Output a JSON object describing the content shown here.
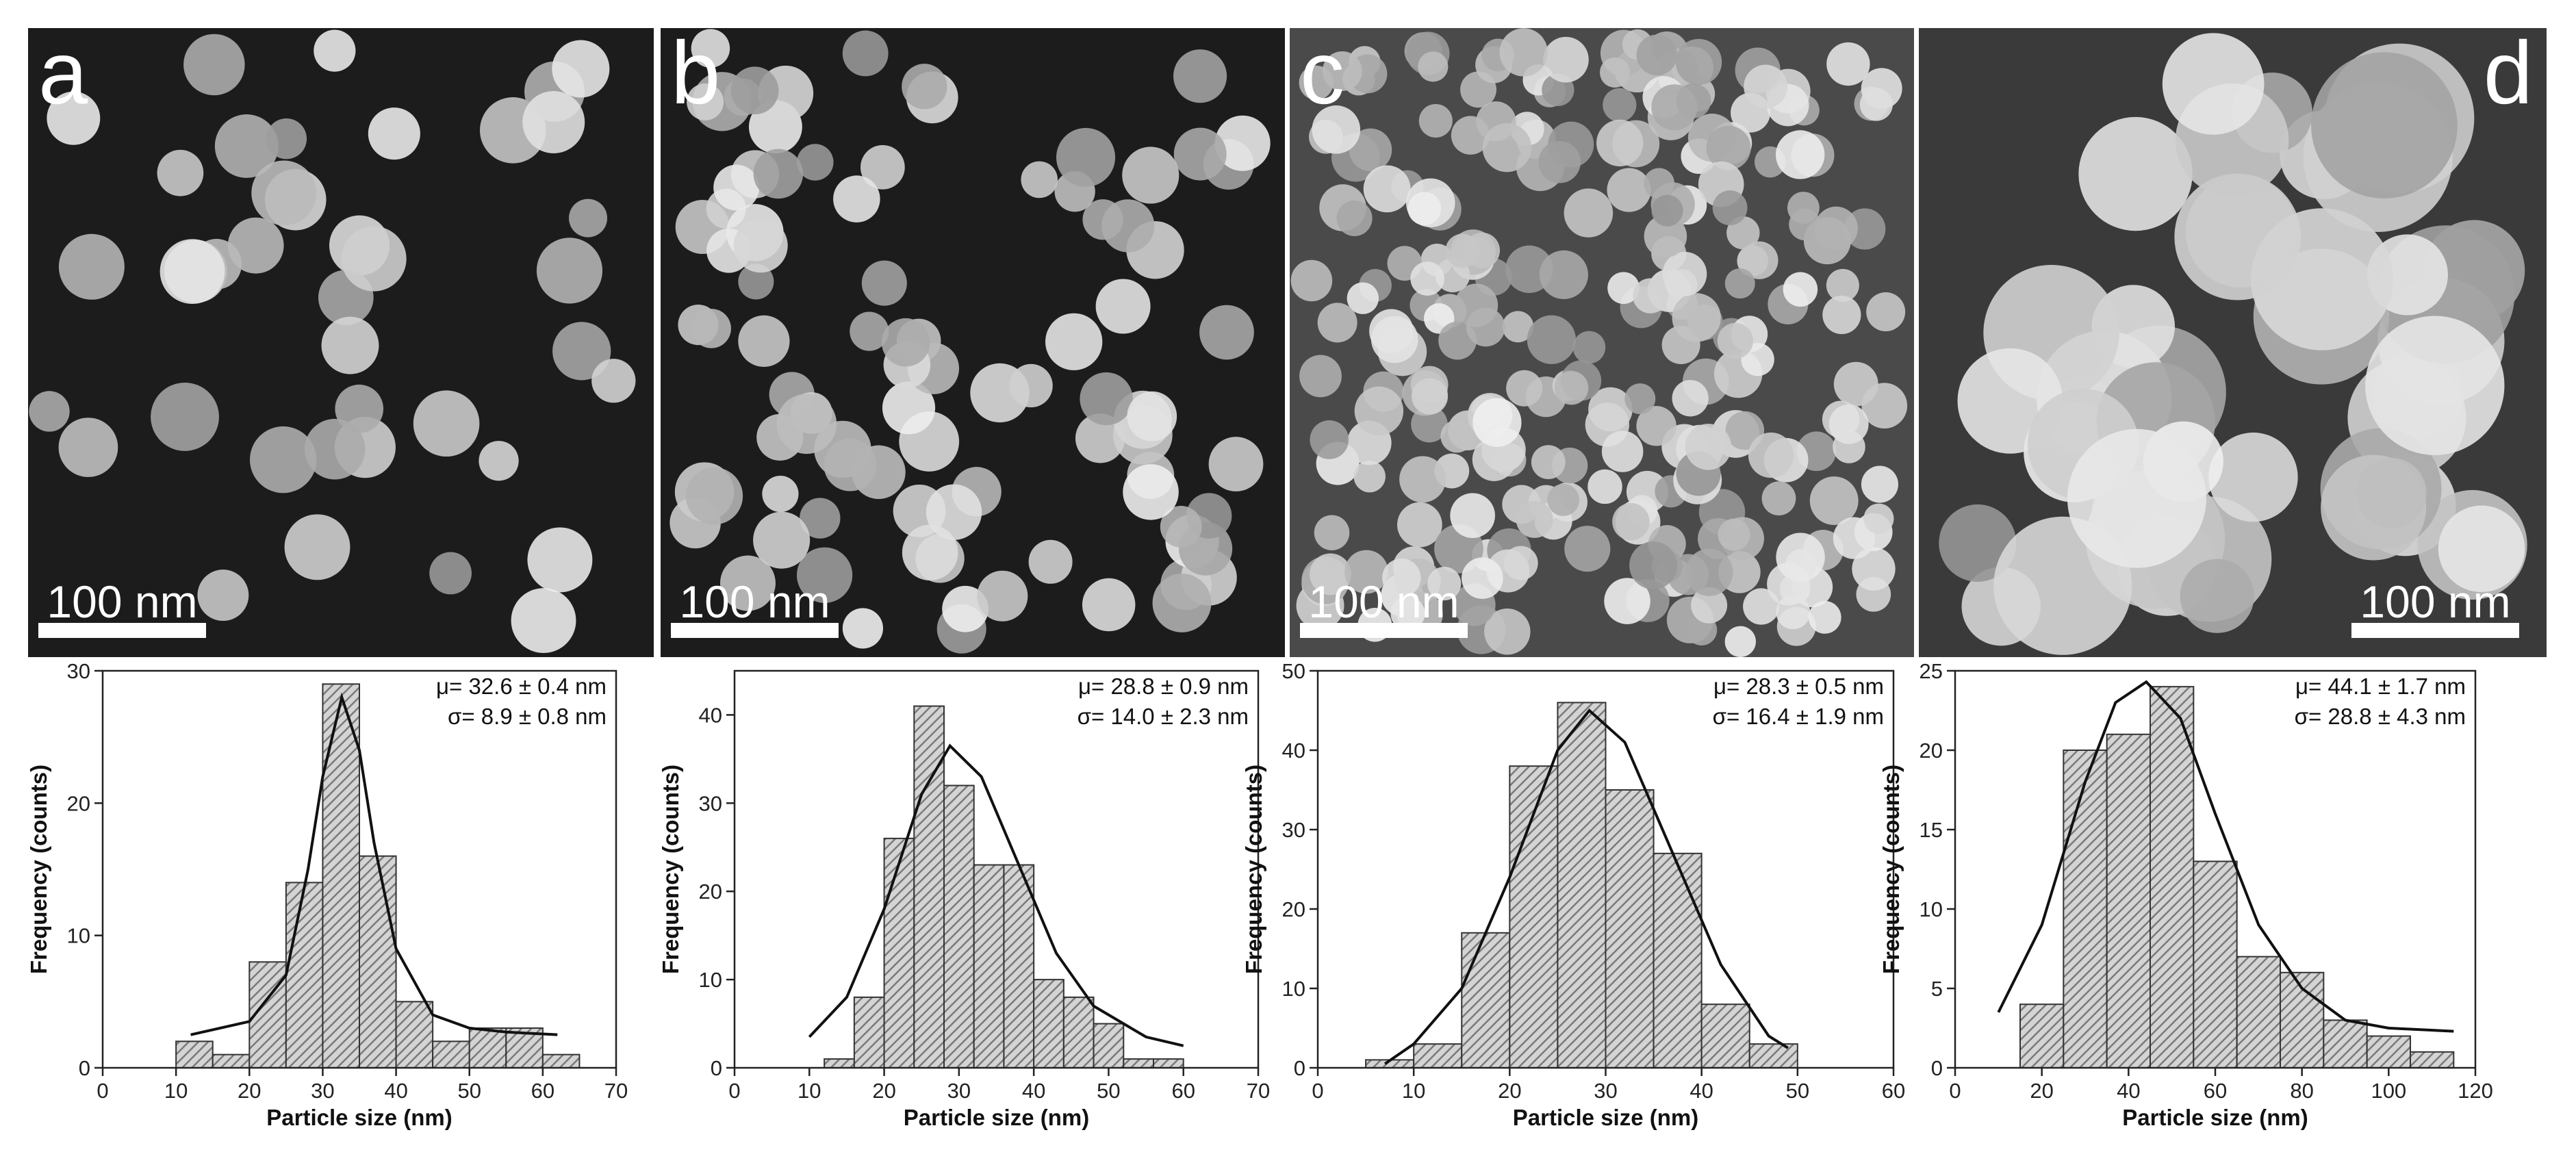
{
  "panels": [
    {
      "label": "a",
      "scale_bar": "100 nm"
    },
    {
      "label": "b",
      "scale_bar": "100 nm"
    },
    {
      "label": "c",
      "scale_bar": "100 nm"
    },
    {
      "label": "d",
      "scale_bar": "100 nm"
    }
  ],
  "chart_data": [
    {
      "type": "histogram",
      "xlabel": "Particle size (nm)",
      "ylabel": "Frequency (counts)",
      "annotations": [
        "μ= 32.6 ± 0.4 nm",
        "σ= 8.9 ± 0.8 nm"
      ],
      "bins": [
        10,
        15,
        20,
        25,
        30,
        35,
        40,
        45,
        50,
        55,
        60,
        65
      ],
      "values": [
        2,
        1,
        8,
        14,
        29,
        16,
        5,
        2,
        3,
        3,
        1
      ],
      "color": "#7a7a7a",
      "fit": {
        "x": [
          12,
          20,
          25,
          28,
          30,
          32.6,
          35,
          37,
          40,
          45,
          50,
          55,
          62
        ],
        "y": [
          2.5,
          3.5,
          7,
          15,
          22,
          28,
          24,
          17,
          9,
          4,
          3,
          2.7,
          2.5
        ]
      },
      "xlim": [
        0,
        70
      ],
      "xticks": [
        0,
        10,
        20,
        30,
        40,
        50,
        60,
        70
      ],
      "ylim": [
        0,
        30
      ],
      "yticks": [
        0,
        10,
        20,
        30
      ]
    },
    {
      "type": "histogram",
      "xlabel": "Particle size (nm)",
      "ylabel": "Frequency (counts)",
      "annotations": [
        "μ= 28.8 ± 0.9 nm",
        "σ= 14.0 ± 2.3 nm"
      ],
      "bins": [
        12,
        16,
        20,
        24,
        28,
        32,
        36,
        40,
        44,
        48,
        52,
        56,
        60
      ],
      "values": [
        1,
        8,
        26,
        41,
        32,
        23,
        23,
        10,
        8,
        5,
        1,
        1
      ],
      "color": "#7a7a7a",
      "fit": {
        "x": [
          10,
          15,
          20,
          25,
          28.8,
          33,
          38,
          43,
          48,
          55,
          60
        ],
        "y": [
          3.5,
          8,
          18,
          31,
          36.5,
          33,
          23,
          13,
          7,
          3.5,
          2.5
        ]
      },
      "xlim": [
        0,
        70
      ],
      "xticks": [
        0,
        10,
        20,
        30,
        40,
        50,
        60,
        70
      ],
      "ylim": [
        0,
        45
      ],
      "yticks": [
        0,
        10,
        20,
        30,
        40
      ]
    },
    {
      "type": "histogram",
      "xlabel": "Particle size (nm)",
      "ylabel": "Frequency (counts)",
      "annotations": [
        "μ= 28.3 ± 0.5 nm",
        "σ= 16.4 ± 1.9 nm"
      ],
      "bins": [
        5,
        10,
        15,
        20,
        25,
        30,
        35,
        40,
        45,
        50
      ],
      "values": [
        1,
        3,
        17,
        38,
        46,
        35,
        27,
        8,
        3
      ],
      "color": "#7a7a7a",
      "fit": {
        "x": [
          7,
          10,
          15,
          20,
          25,
          28.3,
          32,
          37,
          42,
          47,
          49
        ],
        "y": [
          0.5,
          3,
          10,
          24,
          40,
          45,
          41,
          27,
          13,
          4,
          2.5
        ]
      },
      "xlim": [
        0,
        60
      ],
      "xticks": [
        0,
        10,
        20,
        30,
        40,
        50,
        60
      ],
      "ylim": [
        0,
        50
      ],
      "yticks": [
        0,
        10,
        20,
        30,
        40,
        50
      ]
    },
    {
      "type": "histogram",
      "xlabel": "Particle size (nm)",
      "ylabel": "Frequency (counts)",
      "annotations": [
        "μ= 44.1 ± 1.7 nm",
        "σ= 28.8 ± 4.3 nm"
      ],
      "bins": [
        15,
        25,
        35,
        45,
        55,
        65,
        75,
        85,
        95,
        105,
        115
      ],
      "values": [
        4,
        20,
        21,
        24,
        13,
        7,
        6,
        3,
        2,
        1
      ],
      "color": "#7a7a7a",
      "fit": {
        "x": [
          10,
          20,
          30,
          37,
          44.1,
          52,
          60,
          70,
          80,
          90,
          100,
          115
        ],
        "y": [
          3.5,
          9,
          18,
          23,
          24.3,
          22,
          16,
          9,
          5,
          3,
          2.5,
          2.3
        ]
      },
      "xlim": [
        0,
        120
      ],
      "xticks": [
        0,
        20,
        40,
        60,
        80,
        100,
        120
      ],
      "ylim": [
        0,
        25
      ],
      "yticks": [
        0,
        5,
        10,
        15,
        20,
        25
      ]
    }
  ]
}
